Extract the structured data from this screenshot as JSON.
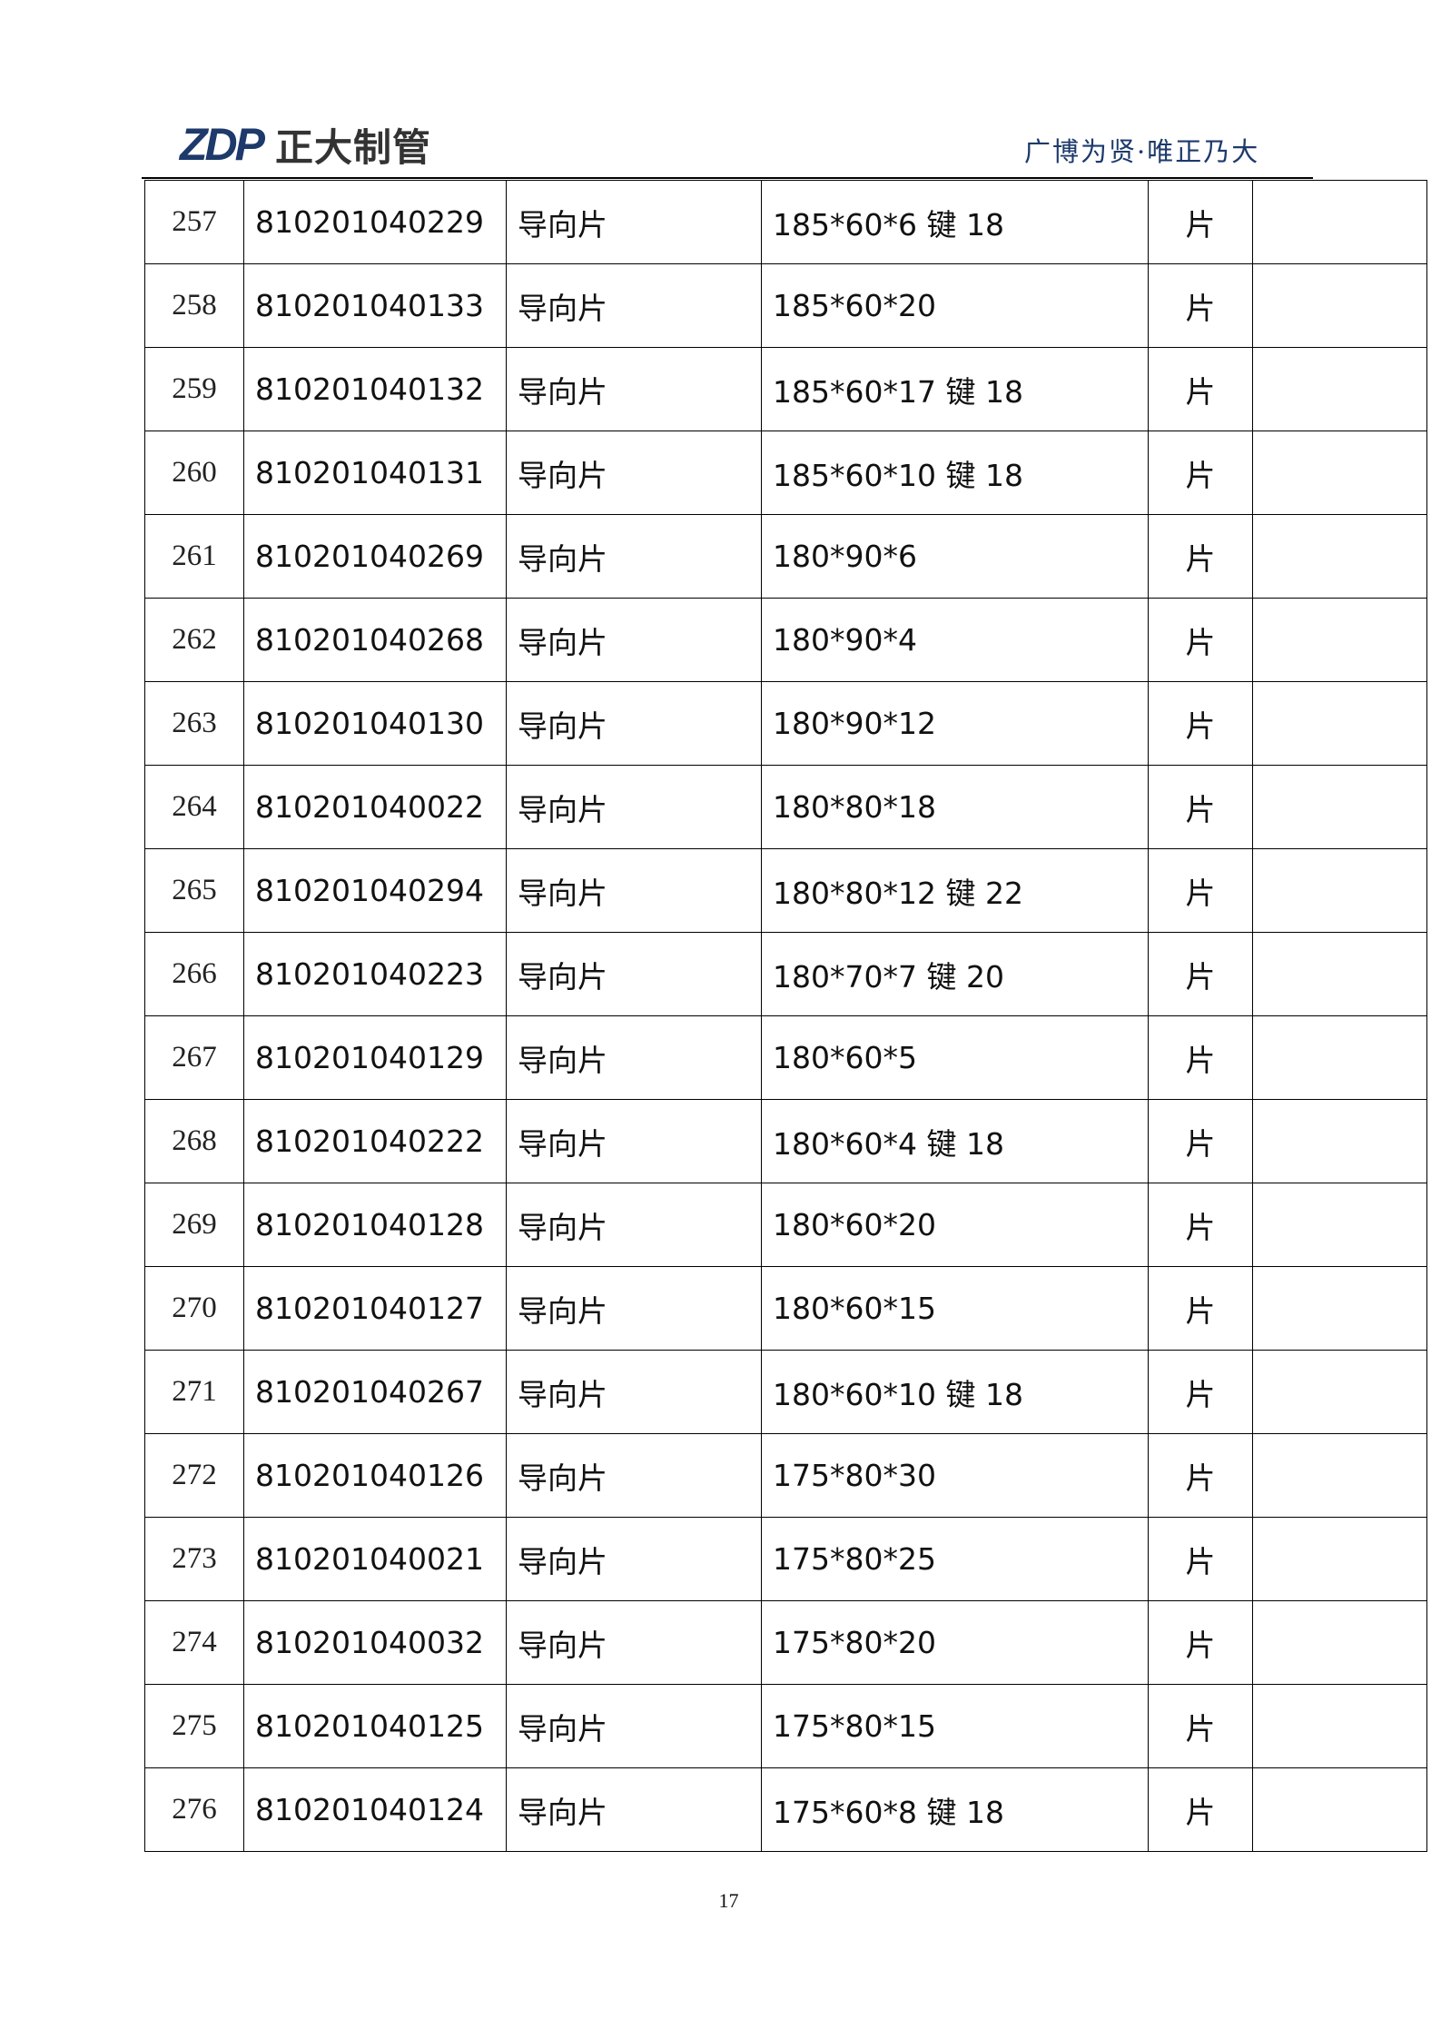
{
  "header": {
    "logo_text": "ZDP 正大制管",
    "logo_mark": "ZDP",
    "logo_cn": "正大制管",
    "slogan": "广博为贤·唯正乃大",
    "brand_color": "#1d3a6b"
  },
  "table": {
    "rows": [
      {
        "no": "257",
        "code": "810201040229",
        "name": "导向片",
        "spec": "185*60*6 键 18",
        "unit": "片",
        "note": ""
      },
      {
        "no": "258",
        "code": "810201040133",
        "name": "导向片",
        "spec": "185*60*20",
        "unit": "片",
        "note": ""
      },
      {
        "no": "259",
        "code": "810201040132",
        "name": "导向片",
        "spec": "185*60*17 键 18",
        "unit": "片",
        "note": ""
      },
      {
        "no": "260",
        "code": "810201040131",
        "name": "导向片",
        "spec": "185*60*10 键 18",
        "unit": "片",
        "note": ""
      },
      {
        "no": "261",
        "code": "810201040269",
        "name": "导向片",
        "spec": "180*90*6",
        "unit": "片",
        "note": ""
      },
      {
        "no": "262",
        "code": "810201040268",
        "name": "导向片",
        "spec": "180*90*4",
        "unit": "片",
        "note": ""
      },
      {
        "no": "263",
        "code": "810201040130",
        "name": "导向片",
        "spec": "180*90*12",
        "unit": "片",
        "note": ""
      },
      {
        "no": "264",
        "code": "810201040022",
        "name": "导向片",
        "spec": "180*80*18",
        "unit": "片",
        "note": ""
      },
      {
        "no": "265",
        "code": "810201040294",
        "name": "导向片",
        "spec": "180*80*12 键 22",
        "unit": "片",
        "note": ""
      },
      {
        "no": "266",
        "code": "810201040223",
        "name": "导向片",
        "spec": "180*70*7 键 20",
        "unit": "片",
        "note": ""
      },
      {
        "no": "267",
        "code": "810201040129",
        "name": "导向片",
        "spec": "180*60*5",
        "unit": "片",
        "note": ""
      },
      {
        "no": "268",
        "code": "810201040222",
        "name": "导向片",
        "spec": "180*60*4 键 18",
        "unit": "片",
        "note": ""
      },
      {
        "no": "269",
        "code": "810201040128",
        "name": "导向片",
        "spec": "180*60*20",
        "unit": "片",
        "note": ""
      },
      {
        "no": "270",
        "code": "810201040127",
        "name": "导向片",
        "spec": "180*60*15",
        "unit": "片",
        "note": ""
      },
      {
        "no": "271",
        "code": "810201040267",
        "name": "导向片",
        "spec": "180*60*10 键 18",
        "unit": "片",
        "note": ""
      },
      {
        "no": "272",
        "code": "810201040126",
        "name": "导向片",
        "spec": "175*80*30",
        "unit": "片",
        "note": ""
      },
      {
        "no": "273",
        "code": "810201040021",
        "name": "导向片",
        "spec": "175*80*25",
        "unit": "片",
        "note": ""
      },
      {
        "no": "274",
        "code": "810201040032",
        "name": "导向片",
        "spec": "175*80*20",
        "unit": "片",
        "note": ""
      },
      {
        "no": "275",
        "code": "810201040125",
        "name": "导向片",
        "spec": "175*80*15",
        "unit": "片",
        "note": ""
      },
      {
        "no": "276",
        "code": "810201040124",
        "name": "导向片",
        "spec": "175*60*8 键 18",
        "unit": "片",
        "note": ""
      }
    ]
  },
  "footer": {
    "page_number": "17"
  }
}
